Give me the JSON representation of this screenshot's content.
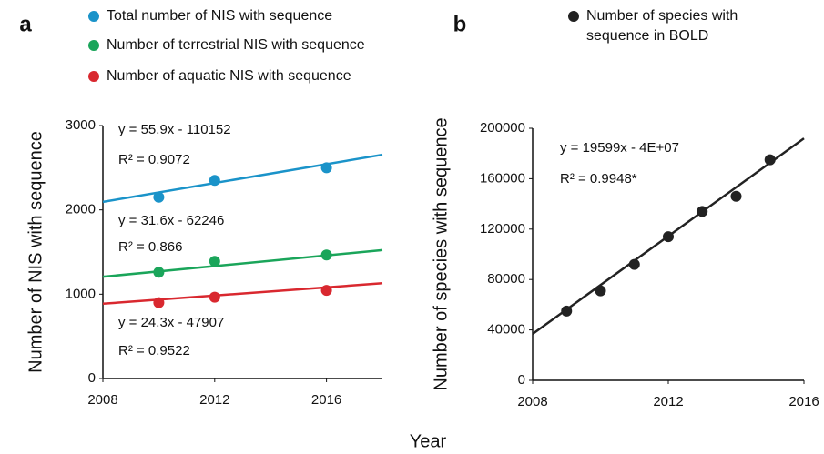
{
  "shared_xlabel": "Year",
  "chart_data": [
    {
      "type": "scatter",
      "panel": "a",
      "ylabel": "Number of NIS with sequence",
      "x": [
        2010,
        2012,
        2016
      ],
      "trend_x": [
        2008,
        2018
      ],
      "series": [
        {
          "name": "Total number of NIS with sequence",
          "color": "#1a93c9",
          "values": [
            2150,
            2350,
            2500
          ],
          "trendline": [
            2095,
            2654
          ]
        },
        {
          "name": "Number of terrestrial NIS with sequence",
          "color": "#1aa55a",
          "values": [
            1260,
            1390,
            1465
          ],
          "trendline": [
            1207,
            1523
          ]
        },
        {
          "name": "Number of aquatic NIS with sequence",
          "color": "#d9282f",
          "values": [
            900,
            965,
            1045
          ],
          "trendline": [
            887,
            1130
          ]
        }
      ],
      "annotations": [
        "y = 55.9x - 110152",
        "R² = 0.9072",
        "y = 31.6x - 62246",
        "R² = 0.866",
        "y = 24.3x - 47907",
        "R² = 0.9522"
      ],
      "xlim": [
        2008,
        2018
      ],
      "xticks": [
        2008,
        2012,
        2016
      ],
      "ylim": [
        0,
        3000
      ],
      "yticks": [
        0,
        1000,
        2000,
        3000
      ]
    },
    {
      "type": "scatter",
      "panel": "b",
      "ylabel": "Number of species with sequence",
      "x": [
        2009,
        2010,
        2011,
        2012,
        2013,
        2014,
        2015
      ],
      "trend_x": [
        2008,
        2016
      ],
      "series": [
        {
          "name": "Number of species with sequence in BOLD",
          "color": "#222222",
          "values": [
            55000,
            71000,
            92000,
            114000,
            134000,
            146000,
            175000
          ],
          "trendline": [
            36800,
            192000
          ]
        }
      ],
      "annotations": [
        "y = 19599x - 4E+07",
        "R² = 0.9948*"
      ],
      "xlim": [
        2008,
        2016
      ],
      "xticks": [
        2008,
        2012,
        2016
      ],
      "ylim": [
        0,
        200000
      ],
      "yticks": [
        0,
        40000,
        80000,
        120000,
        160000,
        200000
      ]
    }
  ]
}
